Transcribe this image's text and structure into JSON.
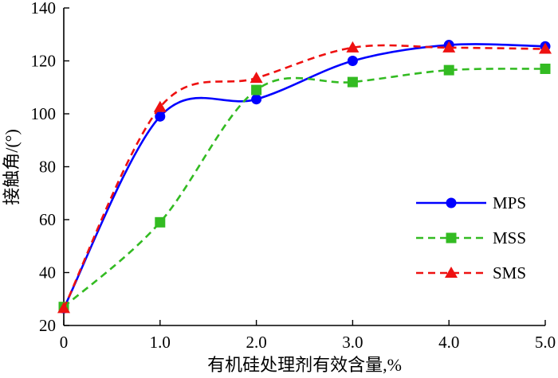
{
  "chart_data": {
    "type": "line",
    "title": "",
    "xlabel": "有机硅处理剂有效含量,%",
    "ylabel": "接触角/(°)",
    "xlim": [
      0,
      5.0
    ],
    "ylim": [
      20,
      140
    ],
    "x_ticks": [
      "0",
      "1.0",
      "2.0",
      "3.0",
      "4.0",
      "5.0"
    ],
    "y_ticks": [
      "20",
      "40",
      "60",
      "80",
      "100",
      "120",
      "140"
    ],
    "grid": false,
    "legend_position": "right",
    "x": [
      0,
      1.0,
      2.0,
      3.0,
      4.0,
      5.0
    ],
    "series": [
      {
        "name": "MPS",
        "color": "#0000ff",
        "marker": "circle",
        "line_style": "solid",
        "values": [
          26.5,
          99,
          105.5,
          120,
          126,
          125.5
        ]
      },
      {
        "name": "MSS",
        "color": "#33bb22",
        "marker": "square",
        "line_style": "dashed",
        "values": [
          27,
          59,
          109,
          112,
          116.5,
          117
        ]
      },
      {
        "name": "SMS",
        "color": "#ee1111",
        "marker": "triangle",
        "line_style": "dashed",
        "values": [
          26.5,
          102.5,
          113.5,
          125,
          125,
          124.5
        ]
      }
    ]
  }
}
